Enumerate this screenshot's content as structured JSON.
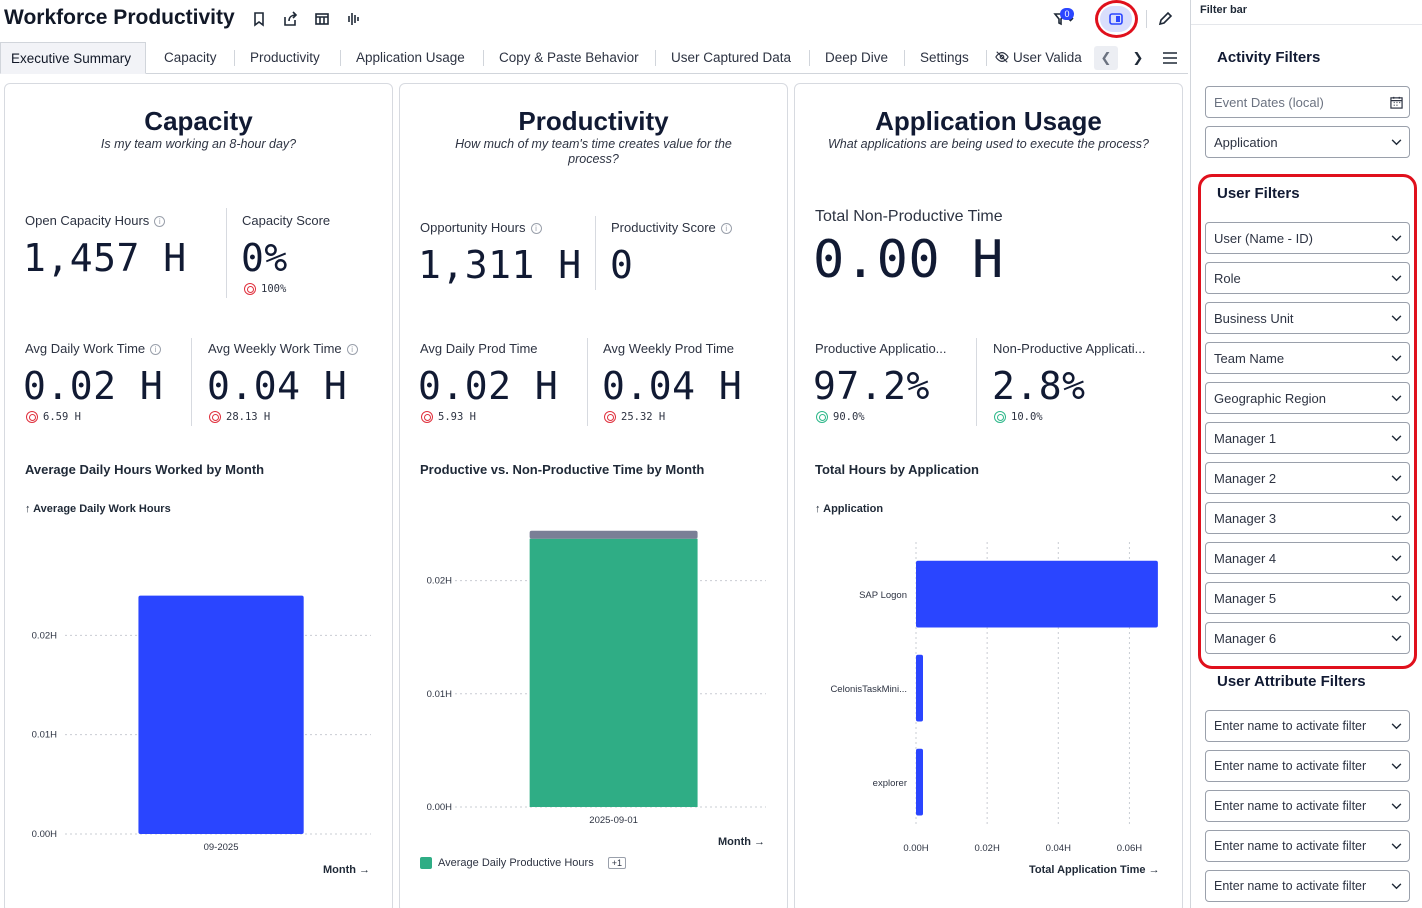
{
  "app": {
    "title": "Workforce Productivity",
    "filter_count": "0"
  },
  "header_icons": [
    "bookmark-icon",
    "share-icon",
    "calendar-table-icon",
    "waveform-icon",
    "filter-icon",
    "sidebar-toggle-icon",
    "pencil-icon"
  ],
  "tabs": [
    "Executive Summary",
    "Capacity",
    "Productivity",
    "Application Usage",
    "Copy & Paste Behavior",
    "User Captured Data",
    "Deep Dive",
    "Settings",
    "User Valida"
  ],
  "capacity": {
    "title": "Capacity",
    "subtitle": "Is my team working an 8-hour day?",
    "open_capacity_label": "Open Capacity Hours",
    "open_capacity_value": "1,457 H",
    "score_label": "Capacity Score",
    "score_value": "0%",
    "score_target": "100%",
    "avg_daily_label": "Avg Daily Work Time",
    "avg_daily_value": "0.02 H",
    "avg_daily_target": "6.59 H",
    "avg_weekly_label": "Avg Weekly Work Time",
    "avg_weekly_value": "0.04 H",
    "avg_weekly_target": "28.13 H",
    "chart_title": "Average Daily Hours Worked by Month",
    "y_hint": "↑ Average Daily Work Hours",
    "x_hint": "Month →"
  },
  "productivity": {
    "title": "Productivity",
    "subtitle": "How much of my team's time creates value for the process?",
    "opp_label": "Opportunity Hours",
    "opp_value": "1,311 H",
    "score_label": "Productivity Score",
    "score_value": "0",
    "avg_daily_label": "Avg Daily Prod Time",
    "avg_daily_value": "0.02 H",
    "avg_daily_target": "5.93 H",
    "avg_weekly_label": "Avg Weekly Prod Time",
    "avg_weekly_value": "0.04 H",
    "avg_weekly_target": "25.32 H",
    "chart_title": "Productive vs. Non-Productive Time by Month",
    "x_hint": "Month →",
    "legend_label": "Average Daily Productive Hours",
    "legend_more": "+1"
  },
  "app_usage": {
    "title": "Application Usage",
    "subtitle": "What applications are being used to execute the process?",
    "nonprod_label": "Total Non-Productive Time",
    "nonprod_value": "0.00 H",
    "prod_app_label": "Productive Applicatio...",
    "prod_app_value": "97.2%",
    "prod_app_target": "90.0%",
    "nonprod_app_label": "Non-Productive Applicati...",
    "nonprod_app_value": "2.8%",
    "nonprod_app_target": "10.0%",
    "chart_title": "Total Hours by Application",
    "y_hint": "↑ Application",
    "x_hint": "Total Application Time →"
  },
  "chart_data": [
    {
      "type": "bar",
      "categories": [
        "09-2025"
      ],
      "values": [
        0.024
      ],
      "title": "Average Daily Hours Worked by Month",
      "xlabel": "Month",
      "ylabel": "Average Daily Work Hours",
      "ylim": [
        0,
        0.03
      ],
      "yticks": [
        "0.00H",
        "0.01H",
        "0.02H"
      ],
      "color": "#2a45ff",
      "grid": true
    },
    {
      "type": "bar",
      "stacked": true,
      "categories": [
        "2025-09-01"
      ],
      "series": [
        {
          "name": "Average Daily Productive Hours",
          "values": [
            0.0237
          ],
          "color": "#2fad85"
        },
        {
          "values": [
            0.0007
          ],
          "color": "#7a7f96"
        }
      ],
      "title": "Productive vs. Non-Productive Time by Month",
      "xlabel": "Month",
      "ylim": [
        0,
        0.025
      ],
      "yticks": [
        "0.00H",
        "0.01H",
        "0.02H"
      ],
      "grid": true
    },
    {
      "type": "bar",
      "orientation": "horizontal",
      "categories": [
        "SAP Logon",
        "CelonisTaskMini...",
        "explorer"
      ],
      "values": [
        0.068,
        0.0007,
        0.0007
      ],
      "title": "Total Hours by Application",
      "xlabel": "Total Application Time",
      "ylabel": "Application",
      "xlim": [
        0,
        0.07
      ],
      "xticks": [
        "0.00H",
        "0.02H",
        "0.04H",
        "0.06H"
      ],
      "color": "#2a45ff",
      "grid": true
    }
  ],
  "filter_bar": {
    "label": "Filter bar",
    "activity_title": "Activity Filters",
    "event_dates_placeholder": "Event Dates (local)",
    "application": "Application",
    "user_title": "User Filters",
    "user_filters": [
      "User (Name - ID)",
      "Role",
      "Business Unit",
      "Team Name",
      "Geographic Region",
      "Manager 1",
      "Manager 2",
      "Manager 3",
      "Manager 4",
      "Manager 5",
      "Manager 6"
    ],
    "attribute_title": "User Attribute Filters",
    "attribute_filters": [
      "Enter name to activate filter",
      "Enter name to activate filter",
      "Enter name to activate filter",
      "Enter name to activate filter",
      "Enter name to activate filter"
    ]
  },
  "colors": {
    "accent": "#2a45ff",
    "productive": "#2fad85",
    "non_productive": "#7a7f96",
    "highlight": "#e0101c"
  }
}
